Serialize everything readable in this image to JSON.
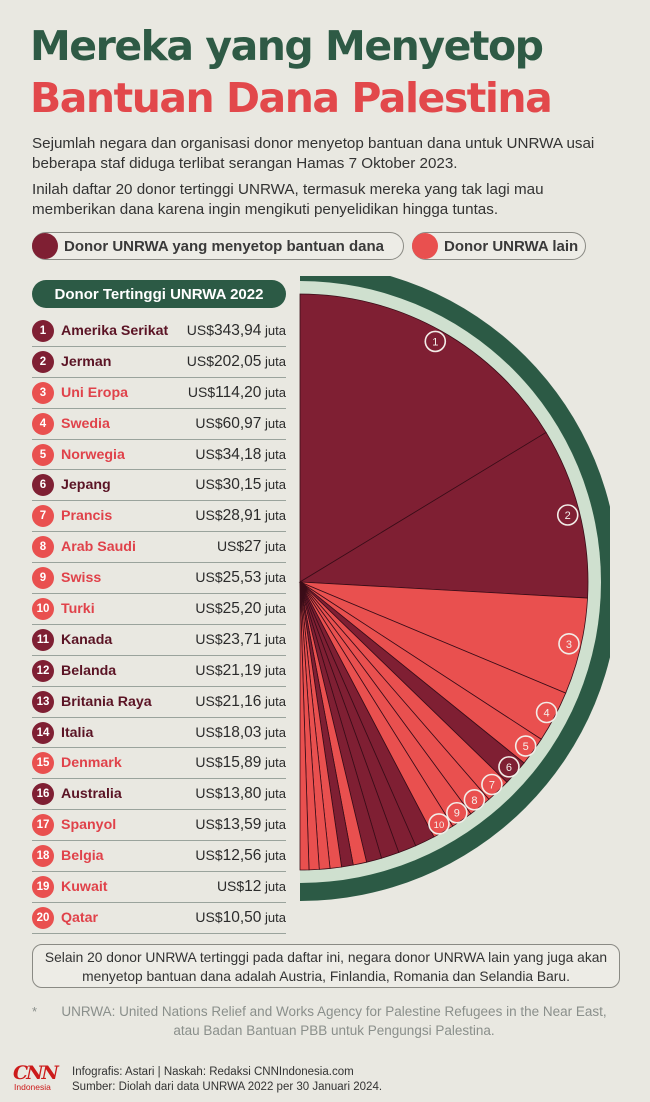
{
  "header": {
    "title_line1": "Mereka yang Menyetop",
    "title_line2": "Bantuan Dana Palestina"
  },
  "intro": {
    "p1": "Sejumlah negara dan organisasi donor menyetop bantuan dana untuk UNRWA usai beberapa staf diduga terlibat serangan Hamas 7 Oktober 2023.",
    "p2": "Inilah daftar 20 donor tertinggi UNRWA, termasuk mereka yang tak lagi mau memberikan dana karena ingin mengikuti penyelidikan hingga tuntas."
  },
  "legend": {
    "stopped": "Donor UNRWA yang menyetop bantuan dana",
    "other": "Donor UNRWA lain"
  },
  "colors": {
    "stopped": "#7f1f33",
    "other": "#e9504f",
    "green": "#2c5a45",
    "bg": "#e9e8e1"
  },
  "table": {
    "heading": "Donor Tertinggi UNRWA 2022",
    "currency": "US$",
    "unit": "juta"
  },
  "chart_data": {
    "type": "pie",
    "title": "Donor Tertinggi UNRWA 2022",
    "unit": "US$ juta",
    "series": [
      {
        "rank": "1",
        "name": "Amerika Serikat",
        "value": 343.94,
        "display": "343,94",
        "stopped": true
      },
      {
        "rank": "2",
        "name": "Jerman",
        "value": 202.05,
        "display": "202,05",
        "stopped": true
      },
      {
        "rank": "3",
        "name": "Uni Eropa",
        "value": 114.2,
        "display": "114,20",
        "stopped": false
      },
      {
        "rank": "4",
        "name": "Swedia",
        "value": 60.97,
        "display": "60,97",
        "stopped": false
      },
      {
        "rank": "5",
        "name": "Norwegia",
        "value": 34.18,
        "display": "34,18",
        "stopped": false
      },
      {
        "rank": "6",
        "name": "Jepang",
        "value": 30.15,
        "display": "30,15",
        "stopped": true
      },
      {
        "rank": "7",
        "name": "Prancis",
        "value": 28.91,
        "display": "28,91",
        "stopped": false
      },
      {
        "rank": "8",
        "name": "Arab Saudi",
        "value": 27,
        "display": "27",
        "stopped": false
      },
      {
        "rank": "9",
        "name": "Swiss",
        "value": 25.53,
        "display": "25,53",
        "stopped": false
      },
      {
        "rank": "10",
        "name": "Turki",
        "value": 25.2,
        "display": "25,20",
        "stopped": false
      },
      {
        "rank": "11",
        "name": "Kanada",
        "value": 23.71,
        "display": "23,71",
        "stopped": true
      },
      {
        "rank": "12",
        "name": "Belanda",
        "value": 21.19,
        "display": "21,19",
        "stopped": true
      },
      {
        "rank": "13",
        "name": "Britania Raya",
        "value": 21.16,
        "display": "21,16",
        "stopped": true
      },
      {
        "rank": "14",
        "name": "Italia",
        "value": 18.03,
        "display": "18,03",
        "stopped": true
      },
      {
        "rank": "15",
        "name": "Denmark",
        "value": 15.89,
        "display": "15,89",
        "stopped": false
      },
      {
        "rank": "16",
        "name": "Australia",
        "value": 13.8,
        "display": "13,80",
        "stopped": true
      },
      {
        "rank": "17",
        "name": "Spanyol",
        "value": 13.59,
        "display": "13,59",
        "stopped": false
      },
      {
        "rank": "18",
        "name": "Belgia",
        "value": 12.56,
        "display": "12,56",
        "stopped": false
      },
      {
        "rank": "19",
        "name": "Kuwait",
        "value": 12,
        "display": "12",
        "stopped": false
      },
      {
        "rank": "20",
        "name": "Qatar",
        "value": 10.5,
        "display": "10,50",
        "stopped": false
      }
    ],
    "labeled_slices": [
      "1",
      "2",
      "3",
      "4",
      "5",
      "6",
      "7",
      "8",
      "9",
      "10"
    ]
  },
  "note": "Selain 20 donor UNRWA tertinggi pada daftar ini, negara donor UNRWA lain yang juga akan menyetop bantuan dana adalah Austria, Finlandia, Romania dan Selandia Baru.",
  "footnote": {
    "asterisk": "*",
    "text": "UNRWA: United Nations Relief and Works Agency for Palestine Refugees in the Near East, atau Badan Bantuan PBB untuk Pengungsi Palestina."
  },
  "credits": {
    "logo_text": "CNN",
    "logo_sub": "Indonesia",
    "line1": "Infografis: Astari | Naskah: Redaksi CNNIndonesia.com",
    "line2": "Sumber: Diolah dari data UNRWA 2022 per 30 Januari 2024."
  }
}
